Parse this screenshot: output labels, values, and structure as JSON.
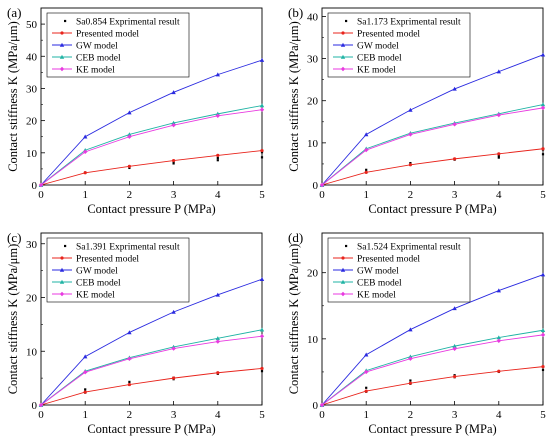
{
  "chart_data": [
    {
      "type": "line",
      "panel_label": "(a)",
      "xlabel": "Contact pressure P (MPa)",
      "ylabel": "Contact stiffness K (MPa/μm)",
      "xlim": [
        0,
        5
      ],
      "ylim": [
        0,
        55
      ],
      "xticks": [
        0,
        1,
        2,
        3,
        4,
        5
      ],
      "yticks": [
        0,
        10,
        20,
        30,
        40,
        50
      ],
      "legend_placement": "top-left",
      "legend_title": "Sa0.854",
      "series": [
        {
          "name": "Exprimental result",
          "kind": "scatter",
          "color": "#000000",
          "points": [
            [
              1,
              3.9
            ],
            [
              2,
              5.3
            ],
            [
              2,
              5.8
            ],
            [
              3,
              6.7
            ],
            [
              3,
              7.3
            ],
            [
              4,
              7.7
            ],
            [
              4,
              8.4
            ],
            [
              5,
              8.6
            ],
            [
              5,
              10.2
            ]
          ]
        },
        {
          "name": "Presented model",
          "kind": "line",
          "color": "#e8241c",
          "x": [
            0,
            1,
            2,
            3,
            4,
            5
          ],
          "y": [
            0,
            3.8,
            5.8,
            7.6,
            9.2,
            10.7
          ]
        },
        {
          "name": "GW model",
          "kind": "line",
          "color": "#2a2ae0",
          "x": [
            0,
            1,
            2,
            3,
            4,
            5
          ],
          "y": [
            0,
            15,
            22.5,
            28.8,
            34.3,
            38.8
          ]
        },
        {
          "name": "CEB model",
          "kind": "line",
          "color": "#1fb3a4",
          "x": [
            0,
            1,
            2,
            3,
            4,
            5
          ],
          "y": [
            0,
            10.8,
            15.7,
            19.3,
            22.1,
            24.7
          ]
        },
        {
          "name": "KE model",
          "kind": "line",
          "color": "#e83ae0",
          "x": [
            0,
            1,
            2,
            3,
            4,
            5
          ],
          "y": [
            0,
            10.3,
            15,
            18.6,
            21.5,
            23.4
          ]
        }
      ]
    },
    {
      "type": "line",
      "panel_label": "(b)",
      "xlabel": "Contact pressure P (MPa)",
      "ylabel": "Contact stiffness K (MPa/μm)",
      "xlim": [
        0,
        5
      ],
      "ylim": [
        0,
        42
      ],
      "xticks": [
        0,
        1,
        2,
        3,
        4,
        5
      ],
      "yticks": [
        0,
        10,
        20,
        30,
        40
      ],
      "legend_placement": "top-left",
      "legend_title": "Sa1.173",
      "series": [
        {
          "name": "Exprimental result",
          "kind": "scatter",
          "color": "#000000",
          "points": [
            [
              1,
              3.0
            ],
            [
              1,
              3.6
            ],
            [
              2,
              4.8
            ],
            [
              2,
              5.2
            ],
            [
              3,
              6.0
            ],
            [
              4,
              6.5
            ],
            [
              4,
              7.0
            ],
            [
              5,
              7.3
            ],
            [
              5,
              8.4
            ]
          ]
        },
        {
          "name": "Presented model",
          "kind": "line",
          "color": "#e8241c",
          "x": [
            0,
            1,
            2,
            3,
            4,
            5
          ],
          "y": [
            0,
            3.0,
            4.8,
            6.2,
            7.4,
            8.6
          ]
        },
        {
          "name": "GW model",
          "kind": "line",
          "color": "#2a2ae0",
          "x": [
            0,
            1,
            2,
            3,
            4,
            5
          ],
          "y": [
            0,
            12,
            17.8,
            22.8,
            26.9,
            30.9
          ]
        },
        {
          "name": "CEB model",
          "kind": "line",
          "color": "#1fb3a4",
          "x": [
            0,
            1,
            2,
            3,
            4,
            5
          ],
          "y": [
            0,
            8.6,
            12.3,
            14.7,
            16.9,
            19.1
          ]
        },
        {
          "name": "KE model",
          "kind": "line",
          "color": "#e83ae0",
          "x": [
            0,
            1,
            2,
            3,
            4,
            5
          ],
          "y": [
            0,
            8.3,
            12,
            14.4,
            16.6,
            18.3
          ]
        }
      ]
    },
    {
      "type": "line",
      "panel_label": "(c)",
      "xlabel": "Contact pressure P (MPa)",
      "ylabel": "Contact stiffness K (MPa/μm)",
      "xlim": [
        0,
        5
      ],
      "ylim": [
        0,
        32
      ],
      "xticks": [
        0,
        1,
        2,
        3,
        4,
        5
      ],
      "yticks": [
        0,
        10,
        20,
        30
      ],
      "legend_placement": "top-left",
      "legend_title": "Sa1.391",
      "series": [
        {
          "name": "Exprimental result",
          "kind": "scatter",
          "color": "#000000",
          "points": [
            [
              1,
              2.3
            ],
            [
              1,
              2.9
            ],
            [
              2,
              3.8
            ],
            [
              2,
              4.3
            ],
            [
              3,
              4.8
            ],
            [
              3,
              5.1
            ],
            [
              4,
              5.8
            ],
            [
              5,
              6.3
            ],
            [
              5,
              6.8
            ]
          ]
        },
        {
          "name": "Presented model",
          "kind": "line",
          "color": "#e8241c",
          "x": [
            0,
            1,
            2,
            3,
            4,
            5
          ],
          "y": [
            0,
            2.4,
            3.8,
            5.0,
            6.0,
            6.8
          ]
        },
        {
          "name": "GW model",
          "kind": "line",
          "color": "#2a2ae0",
          "x": [
            0,
            1,
            2,
            3,
            4,
            5
          ],
          "y": [
            0,
            9,
            13.5,
            17.3,
            20.5,
            23.4
          ]
        },
        {
          "name": "CEB model",
          "kind": "line",
          "color": "#1fb3a4",
          "x": [
            0,
            1,
            2,
            3,
            4,
            5
          ],
          "y": [
            0,
            6.3,
            8.8,
            10.8,
            12.4,
            14.0
          ]
        },
        {
          "name": "KE model",
          "kind": "line",
          "color": "#e83ae0",
          "x": [
            0,
            1,
            2,
            3,
            4,
            5
          ],
          "y": [
            0,
            6.1,
            8.6,
            10.5,
            11.8,
            12.8
          ]
        }
      ]
    },
    {
      "type": "line",
      "panel_label": "(d)",
      "xlabel": "Contact pressure P (MPa)",
      "ylabel": "Contact stiffness K (MPa/μm)",
      "xlim": [
        0,
        5
      ],
      "ylim": [
        0,
        26
      ],
      "xticks": [
        0,
        1,
        2,
        3,
        4,
        5
      ],
      "yticks": [
        0,
        10,
        20
      ],
      "legend_placement": "top-left",
      "legend_title": "Sa1.524",
      "series": [
        {
          "name": "Exprimental result",
          "kind": "scatter",
          "color": "#000000",
          "points": [
            [
              1,
              2.0
            ],
            [
              1,
              2.6
            ],
            [
              2,
              3.2
            ],
            [
              2,
              3.7
            ],
            [
              3,
              4.2
            ],
            [
              3,
              4.5
            ],
            [
              4,
              5.0
            ],
            [
              5,
              5.3
            ],
            [
              5,
              5.8
            ]
          ]
        },
        {
          "name": "Presented model",
          "kind": "line",
          "color": "#e8241c",
          "x": [
            0,
            1,
            2,
            3,
            4,
            5
          ],
          "y": [
            0,
            2.1,
            3.3,
            4.3,
            5.1,
            5.8
          ]
        },
        {
          "name": "GW model",
          "kind": "line",
          "color": "#2a2ae0",
          "x": [
            0,
            1,
            2,
            3,
            4,
            5
          ],
          "y": [
            0,
            7.6,
            11.4,
            14.6,
            17.3,
            19.7
          ]
        },
        {
          "name": "CEB model",
          "kind": "line",
          "color": "#1fb3a4",
          "x": [
            0,
            1,
            2,
            3,
            4,
            5
          ],
          "y": [
            0,
            5.2,
            7.3,
            8.9,
            10.2,
            11.3
          ]
        },
        {
          "name": "KE model",
          "kind": "line",
          "color": "#e83ae0",
          "x": [
            0,
            1,
            2,
            3,
            4,
            5
          ],
          "y": [
            0,
            5.0,
            7.0,
            8.5,
            9.7,
            10.6
          ]
        }
      ]
    }
  ]
}
